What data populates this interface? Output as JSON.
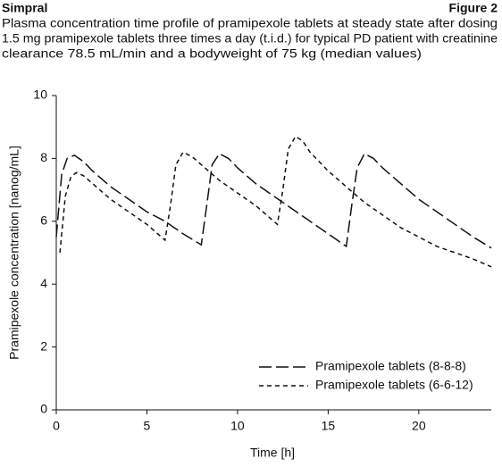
{
  "header": {
    "title": "Simpral",
    "figure": "Figure 2",
    "caption_lines": [
      "Plasma concentration time profile of pramipexole tablets at steady state after dosing",
      "1.5 mg pramipexole tablets three times a day (t.i.d.) for typical PD patient with creatinine",
      "clearance 78.5 mL/min and a bodyweight of 75 kg (median values)"
    ]
  },
  "chart_data": {
    "type": "line",
    "x_label": "Time [h]",
    "y_label": "Pramipexole concentration [nanog/mL]",
    "xlim": [
      0,
      24
    ],
    "xticks": [
      0,
      5,
      10,
      15,
      20
    ],
    "ylim": [
      0,
      10
    ],
    "yticks": [
      0,
      2,
      4,
      6,
      8,
      10
    ],
    "legend": "lower-right",
    "series": [
      {
        "name": "Pramipexole tablets (8-8-8)",
        "color": "#111111",
        "x": [
          0,
          0.3,
          0.6,
          1,
          1.5,
          2,
          3,
          4,
          5,
          6,
          7,
          8,
          8.3,
          8.6,
          9,
          9.5,
          10,
          11,
          12,
          13,
          14,
          15,
          16,
          16.3,
          16.6,
          17,
          17.5,
          18,
          19,
          20,
          21,
          22,
          23,
          24
        ],
        "values": [
          5.5,
          7.5,
          8.0,
          8.1,
          7.9,
          7.6,
          7.1,
          6.7,
          6.3,
          6.0,
          5.6,
          5.25,
          6.5,
          7.8,
          8.15,
          8.0,
          7.7,
          7.2,
          6.8,
          6.4,
          6.0,
          5.6,
          5.2,
          6.5,
          7.7,
          8.15,
          8.0,
          7.7,
          7.2,
          6.7,
          6.3,
          5.9,
          5.5,
          5.15
        ]
      },
      {
        "name": "Pramipexole tablets (6-6-12)",
        "color": "#111111",
        "x": [
          0.2,
          0.5,
          0.8,
          1.1,
          1.5,
          2,
          3,
          4,
          5,
          6,
          6.3,
          6.6,
          7,
          7.5,
          8,
          9,
          10,
          11,
          12.2,
          12.5,
          12.8,
          13.2,
          13.6,
          14,
          15,
          16,
          17,
          18,
          19,
          20,
          21,
          22,
          23,
          24
        ],
        "values": [
          5.0,
          6.8,
          7.4,
          7.55,
          7.45,
          7.2,
          6.7,
          6.3,
          5.9,
          5.4,
          6.5,
          7.8,
          8.2,
          8.05,
          7.8,
          7.3,
          6.9,
          6.5,
          5.9,
          7.0,
          8.3,
          8.7,
          8.55,
          8.2,
          7.6,
          7.1,
          6.6,
          6.2,
          5.8,
          5.5,
          5.2,
          5.0,
          4.8,
          4.55
        ]
      }
    ]
  }
}
